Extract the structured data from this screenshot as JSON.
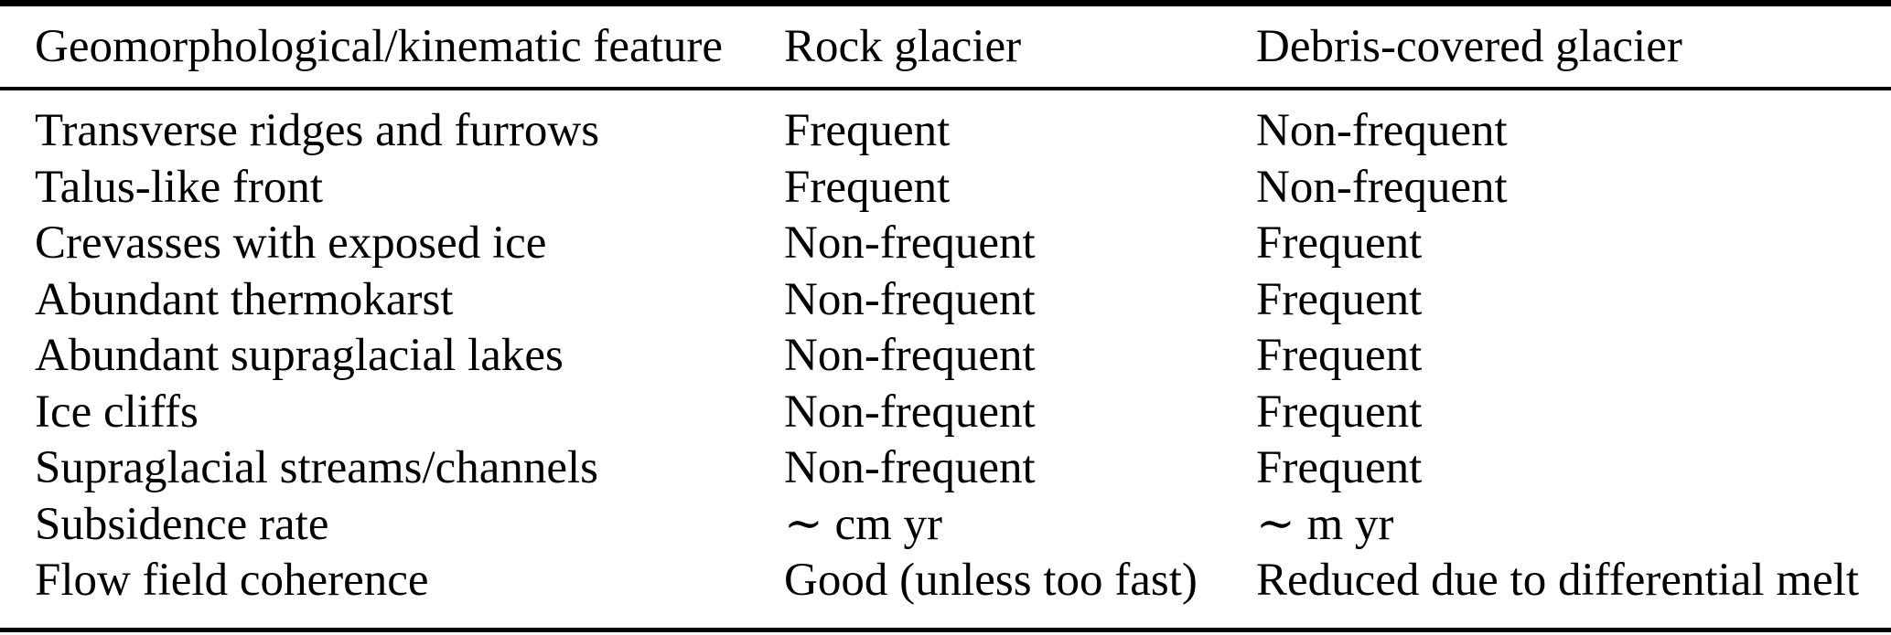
{
  "table": {
    "columns": [
      "Geomorphological/kinematic feature",
      "Rock glacier",
      "Debris-covered glacier"
    ],
    "rows": [
      [
        "Transverse ridges and furrows",
        "Frequent",
        "Non-frequent"
      ],
      [
        "Talus-like front",
        "Frequent",
        "Non-frequent"
      ],
      [
        "Crevasses with exposed ice",
        "Non-frequent",
        "Frequent"
      ],
      [
        "Abundant thermokarst",
        "Non-frequent",
        "Frequent"
      ],
      [
        "Abundant supraglacial lakes",
        "Non-frequent",
        "Frequent"
      ],
      [
        "Ice cliffs",
        "Non-frequent",
        "Frequent"
      ],
      [
        "Supraglacial streams/channels",
        "Non-frequent",
        "Frequent"
      ],
      [
        "Subsidence rate",
        "∼ cm yr",
        "∼ m yr"
      ],
      [
        "Flow field coherence",
        "Good (unless too fast)",
        "Reduced due to differential melt"
      ]
    ]
  },
  "colors": {
    "text": "#000000",
    "background": "#ffffff",
    "rule": "#000000"
  }
}
